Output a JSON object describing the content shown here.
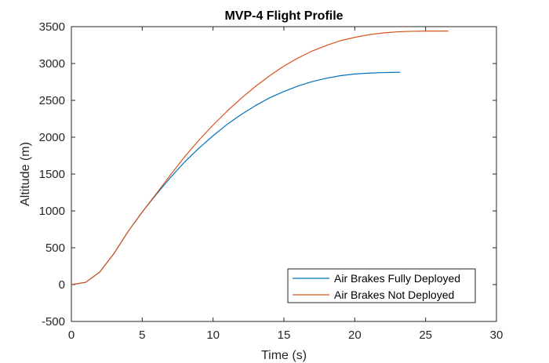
{
  "chart_data": {
    "type": "line",
    "title": "MVP-4 Flight Profile",
    "xlabel": "Time (s)",
    "ylabel": "Altitude (m)",
    "xlim": [
      0,
      30
    ],
    "ylim": [
      -500,
      3500
    ],
    "xticks": [
      0,
      5,
      10,
      15,
      20,
      25,
      30
    ],
    "yticks": [
      -500,
      0,
      500,
      1000,
      1500,
      2000,
      2500,
      3000,
      3500
    ],
    "grid": false,
    "legend_position": "bottom-right",
    "series": [
      {
        "name": "Air Brakes Fully Deployed",
        "color": "#0072BD",
        "x": [
          0,
          1,
          2,
          3,
          4,
          5,
          6,
          7,
          8,
          9,
          10,
          11,
          12,
          13,
          14,
          15,
          16,
          17,
          18,
          19,
          20,
          21,
          22,
          23,
          23.2
        ],
        "y": [
          0,
          30,
          170,
          420,
          720,
          985,
          1225,
          1455,
          1665,
          1850,
          2020,
          2175,
          2310,
          2430,
          2535,
          2620,
          2695,
          2755,
          2800,
          2835,
          2858,
          2870,
          2877,
          2880,
          2880
        ]
      },
      {
        "name": "Air Brakes Not Deployed",
        "color": "#D95319",
        "x": [
          0,
          1,
          2,
          3,
          4,
          5,
          6,
          7,
          8,
          9,
          10,
          11,
          12,
          13,
          14,
          15,
          16,
          17,
          18,
          19,
          20,
          21,
          22,
          23,
          24,
          25,
          26,
          26.6
        ],
        "y": [
          0,
          30,
          170,
          420,
          720,
          985,
          1235,
          1490,
          1735,
          1960,
          2165,
          2355,
          2530,
          2690,
          2835,
          2965,
          3075,
          3170,
          3245,
          3310,
          3355,
          3390,
          3415,
          3430,
          3437,
          3440,
          3440,
          3440
        ]
      }
    ]
  }
}
